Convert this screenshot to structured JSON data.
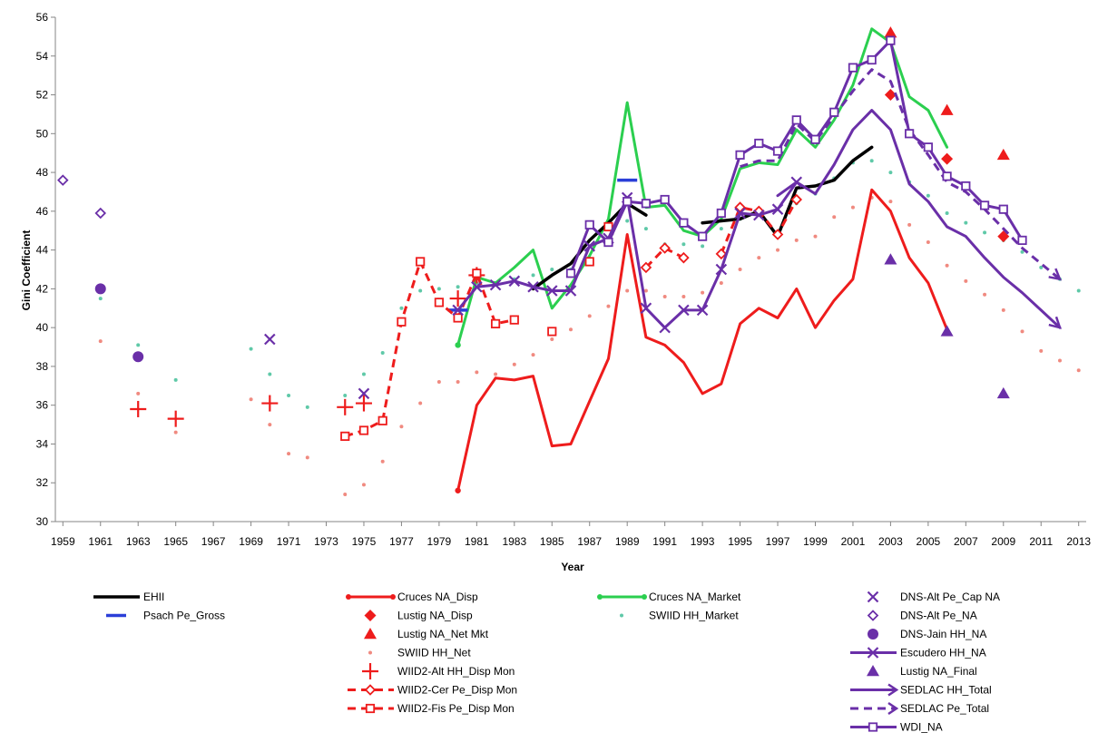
{
  "chart_data": {
    "type": "line",
    "title": "",
    "xlabel": "Year",
    "ylabel": "Gini Coefficient",
    "xlim": [
      1958.6,
      2013.4
    ],
    "ylim": [
      30,
      56
    ],
    "y_ticks": [
      30,
      32,
      34,
      36,
      38,
      40,
      42,
      44,
      46,
      48,
      50,
      52,
      54,
      56
    ],
    "x_ticks": [
      1959,
      1961,
      1963,
      1965,
      1967,
      1969,
      1971,
      1973,
      1975,
      1977,
      1979,
      1981,
      1983,
      1985,
      1987,
      1989,
      1991,
      1993,
      1995,
      1997,
      1999,
      2001,
      2003,
      2005,
      2007,
      2009,
      2011,
      2013
    ],
    "grid": false,
    "legend_position": "bottom",
    "series": [
      {
        "name": "EHII",
        "color": "#000000",
        "style": "line",
        "width": 3.5,
        "marker": "none",
        "x": [
          1984,
          1985,
          1986,
          1987,
          1988,
          1989,
          1990
        ],
        "y": [
          42.0,
          42.7,
          43.3,
          44.5,
          45.4,
          46.4,
          45.8
        ]
      },
      {
        "name": "",
        "color": "#000000",
        "style": "line",
        "width": 3.5,
        "marker": "none",
        "x": [
          1993,
          1994,
          1995,
          1996,
          1997,
          1998,
          1999,
          2000,
          2001,
          2002
        ],
        "y": [
          45.4,
          45.5,
          45.6,
          46.0,
          44.7,
          47.2,
          47.3,
          47.6,
          48.6,
          49.3
        ]
      },
      {
        "name": "Psach Pe_Gross",
        "color": "#2b3fd8",
        "style": "none",
        "marker": "dash",
        "x": [
          1980,
          1989
        ],
        "y": [
          40.9,
          47.6
        ]
      },
      {
        "name": "Cruces NA_Disp",
        "color": "#ee1c1c",
        "style": "line",
        "width": 3,
        "marker": "circle",
        "x": [
          1980,
          1981,
          1982,
          1983,
          1984,
          1985,
          1986,
          1987,
          1988,
          1989,
          1990,
          1991,
          1992,
          1993,
          1994,
          1995,
          1996,
          1997,
          1998,
          1999,
          2000,
          2001,
          2002,
          2003,
          2004,
          2005,
          2006
        ],
        "y": [
          31.6,
          36.0,
          37.4,
          37.3,
          37.5,
          33.9,
          34.0,
          36.2,
          38.4,
          44.8,
          39.5,
          39.1,
          38.2,
          36.6,
          37.1,
          40.2,
          41.0,
          40.5,
          42.0,
          40.0,
          41.4,
          42.5,
          47.1,
          46.0,
          43.6,
          42.3,
          39.9
        ]
      },
      {
        "name": "Lustig NA_Disp",
        "color": "#ee1c1c",
        "style": "none",
        "marker": "diamond",
        "x": [
          2003,
          2006,
          2009
        ],
        "y": [
          52.0,
          48.7,
          44.7
        ]
      },
      {
        "name": "Lustig NA_Net Mkt",
        "color": "#ee1c1c",
        "style": "none",
        "marker": "triangle",
        "x": [
          2003,
          2006,
          2009
        ],
        "y": [
          55.2,
          51.2,
          48.9
        ]
      },
      {
        "name": "SWIID HH_Net",
        "color": "#f08a80",
        "style": "none",
        "marker": "dot",
        "x": [
          1961,
          1963,
          1965,
          1969,
          1970,
          1971,
          1972,
          1974,
          1975,
          1976,
          1977,
          1978,
          1979,
          1980,
          1981,
          1982,
          1983,
          1984,
          1985,
          1986,
          1987,
          1988,
          1989,
          1990,
          1991,
          1992,
          1993,
          1994,
          1995,
          1996,
          1997,
          1998,
          1999,
          2000,
          2001,
          2002,
          2003,
          2004,
          2005,
          2006,
          2007,
          2008,
          2009,
          2010,
          2011,
          2012,
          2013
        ],
        "y": [
          39.3,
          36.6,
          34.6,
          36.3,
          35.0,
          33.5,
          33.3,
          31.4,
          31.9,
          33.1,
          34.9,
          36.1,
          37.2,
          37.2,
          37.7,
          37.6,
          38.1,
          38.6,
          39.4,
          39.9,
          40.6,
          41.1,
          41.9,
          41.9,
          41.6,
          41.6,
          41.8,
          42.3,
          43.0,
          43.6,
          44.0,
          44.5,
          44.7,
          45.7,
          46.2,
          46.7,
          46.5,
          45.3,
          44.4,
          43.2,
          42.4,
          41.7,
          40.9,
          39.8,
          38.8,
          38.3,
          37.8
        ]
      },
      {
        "name": "WIID2-Alt HH_Disp Mon",
        "color": "#ee1c1c",
        "style": "none",
        "marker": "plus",
        "x": [
          1963,
          1965,
          1970,
          1974,
          1975,
          1980,
          1981
        ],
        "y": [
          35.8,
          35.3,
          36.1,
          35.9,
          36.1,
          41.5,
          42.7
        ]
      },
      {
        "name": "WIID2-Cer Pe_Disp Mon",
        "color": "#ee1c1c",
        "style": "dashed",
        "width": 3,
        "marker": "diamond-open",
        "x": [
          1990,
          1991,
          1992
        ],
        "y": [
          43.1,
          44.1,
          43.6
        ]
      },
      {
        "name": "",
        "color": "#ee1c1c",
        "style": "dashed",
        "width": 3,
        "marker": "diamond-open",
        "x": [
          1994,
          1995,
          1996,
          1997,
          1998
        ],
        "y": [
          43.8,
          46.2,
          46.0,
          44.8,
          46.6
        ]
      },
      {
        "name": "WIID2-Fis Pe_Disp Mon",
        "color": "#ee1c1c",
        "style": "dashed",
        "width": 3,
        "marker": "square-open",
        "x": [
          1974,
          1975,
          1976,
          1977,
          1978,
          1979,
          1980,
          1981,
          1982,
          1983
        ],
        "y": [
          34.4,
          34.7,
          35.2,
          40.3,
          43.4,
          41.3,
          40.5,
          42.8,
          40.2,
          40.4
        ]
      },
      {
        "name": "",
        "color": "#ee1c1c",
        "style": "none",
        "marker": "square-open",
        "x": [
          1985,
          1987,
          1988
        ],
        "y": [
          39.8,
          43.4,
          45.2
        ]
      },
      {
        "name": "Cruces NA_Market",
        "color": "#2bcf4f",
        "style": "line",
        "width": 3,
        "marker": "circle",
        "x": [
          1980,
          1981,
          1982,
          1983,
          1984,
          1985,
          1986,
          1987,
          1988,
          1989,
          1990,
          1991,
          1992,
          1993,
          1994,
          1995,
          1996,
          1997,
          1998,
          1999,
          2000,
          2001,
          2002,
          2003,
          2004,
          2005,
          2006
        ],
        "y": [
          39.1,
          42.6,
          42.3,
          43.1,
          44.0,
          41.0,
          42.2,
          43.7,
          45.6,
          51.6,
          46.2,
          46.3,
          45.0,
          44.7,
          45.6,
          48.2,
          48.5,
          48.4,
          50.2,
          49.3,
          50.7,
          52.5,
          55.4,
          54.7,
          51.9,
          51.2,
          49.3
        ]
      },
      {
        "name": "SWIID HH_Market",
        "color": "#5fc9a8",
        "style": "none",
        "marker": "dot",
        "x": [
          1961,
          1963,
          1965,
          1969,
          1970,
          1971,
          1972,
          1974,
          1975,
          1976,
          1977,
          1978,
          1979,
          1980,
          1981,
          1982,
          1983,
          1984,
          1985,
          1986,
          1987,
          1988,
          1989,
          1990,
          1991,
          1992,
          1993,
          1994,
          1995,
          1996,
          1997,
          1998,
          1999,
          2000,
          2001,
          2002,
          2003,
          2004,
          2005,
          2006,
          2007,
          2008,
          2009,
          2010,
          2011,
          2012,
          2013
        ],
        "y": [
          41.5,
          39.1,
          37.3,
          38.9,
          37.6,
          36.5,
          35.9,
          36.5,
          37.6,
          38.7,
          41.0,
          41.9,
          42.0,
          42.1,
          42.3,
          42.3,
          42.5,
          42.7,
          43.0,
          43.0,
          43.4,
          44.4,
          45.5,
          45.1,
          44.3,
          44.3,
          44.2,
          45.1,
          45.6,
          46.0,
          46.1,
          46.4,
          46.9,
          47.7,
          48.5,
          48.6,
          48.0,
          47.5,
          46.8,
          45.9,
          45.4,
          44.9,
          44.5,
          43.9,
          43.1,
          42.5,
          41.9
        ]
      },
      {
        "name": "DNS-Alt Pe_Cap NA",
        "color": "#6a2fa8",
        "style": "none",
        "marker": "x",
        "x": [
          1970,
          1975
        ],
        "y": [
          39.4,
          36.6
        ]
      },
      {
        "name": "DNS-Alt Pe_NA",
        "color": "#6a2fa8",
        "style": "none",
        "marker": "diamond-open",
        "x": [
          1959,
          1961
        ],
        "y": [
          47.6,
          45.9
        ]
      },
      {
        "name": "DNS-Jain HH_NA",
        "color": "#6a2fa8",
        "style": "none",
        "marker": "circle-big",
        "x": [
          1961,
          1963
        ],
        "y": [
          42.0,
          38.5
        ]
      },
      {
        "name": "Escudero HH_NA",
        "color": "#6a2fa8",
        "style": "line",
        "width": 3,
        "marker": "x",
        "x": [
          1980,
          1981,
          1982,
          1983,
          1984,
          1985,
          1986,
          1987,
          1988,
          1989,
          1990,
          1991,
          1992,
          1993,
          1994,
          1995,
          1996,
          1997,
          1998
        ],
        "y": [
          40.9,
          42.1,
          42.2,
          42.4,
          42.1,
          41.9,
          41.9,
          44.2,
          44.6,
          46.7,
          41.0,
          40.0,
          40.9,
          40.9,
          43.0,
          45.9,
          45.8,
          46.1,
          47.5
        ]
      },
      {
        "name": "Lustig NA_Final",
        "color": "#6a2fa8",
        "style": "none",
        "marker": "triangle",
        "x": [
          2003,
          2006,
          2009
        ],
        "y": [
          43.5,
          39.8,
          36.6
        ]
      },
      {
        "name": "SEDLAC HH_Total",
        "color": "#6a2fa8",
        "style": "line",
        "width": 3,
        "marker": "arrow",
        "x": [
          1997,
          1998,
          1999,
          2000,
          2001,
          2002,
          2003,
          2004,
          2005,
          2006,
          2007,
          2008,
          2009,
          2010,
          2011,
          2012
        ],
        "y": [
          46.8,
          47.5,
          46.9,
          48.4,
          50.2,
          51.2,
          50.2,
          47.4,
          46.5,
          45.2,
          44.7,
          43.6,
          42.6,
          41.8,
          40.9,
          40.0
        ]
      },
      {
        "name": "SEDLAC Pe_Total",
        "color": "#6a2fa8",
        "style": "dashed",
        "width": 3,
        "marker": "arrow",
        "x": [
          1995,
          1996,
          1997,
          1998,
          1999,
          2000,
          2001,
          2002,
          2003,
          2004,
          2005,
          2006,
          2007,
          2008,
          2009,
          2010,
          2011,
          2012
        ],
        "y": [
          48.3,
          48.6,
          48.6,
          50.5,
          49.6,
          50.9,
          52.2,
          53.3,
          52.7,
          50.2,
          48.9,
          47.5,
          47.0,
          46.1,
          45.1,
          44.1,
          43.3,
          42.5
        ]
      },
      {
        "name": "WDI_NA",
        "color": "#6a2fa8",
        "style": "line",
        "width": 3,
        "marker": "square-open",
        "x": [
          1986,
          1987,
          1988,
          1989,
          1990,
          1991,
          1992,
          1993,
          1994,
          1995,
          1996,
          1997,
          1998,
          1999,
          2000,
          2001,
          2002,
          2003,
          2004,
          2005,
          2006,
          2007,
          2008,
          2009,
          2010
        ],
        "y": [
          42.8,
          45.3,
          44.4,
          46.5,
          46.4,
          46.6,
          45.4,
          44.7,
          45.9,
          48.9,
          49.5,
          49.1,
          50.7,
          49.7,
          51.1,
          53.4,
          53.8,
          54.8,
          50.0,
          49.3,
          47.8,
          47.3,
          46.3,
          46.1,
          44.5
        ]
      }
    ],
    "legend": [
      {
        "label": "EHII",
        "series": 0
      },
      {
        "label": "Psach Pe_Gross",
        "series": 2
      },
      {
        "label": "Cruces NA_Disp",
        "series": 3
      },
      {
        "label": "Lustig NA_Disp",
        "series": 4
      },
      {
        "label": "Lustig NA_Net Mkt",
        "series": 5
      },
      {
        "label": "SWIID HH_Net",
        "series": 6
      },
      {
        "label": "WIID2-Alt HH_Disp Mon",
        "series": 7
      },
      {
        "label": "WIID2-Cer Pe_Disp Mon",
        "series": 8
      },
      {
        "label": "WIID2-Fis Pe_Disp Mon",
        "series": 10
      },
      {
        "label": "Cruces NA_Market",
        "series": 12
      },
      {
        "label": "SWIID HH_Market",
        "series": 13
      },
      {
        "label": "DNS-Alt Pe_Cap NA",
        "series": 14
      },
      {
        "label": "DNS-Alt Pe_NA",
        "series": 15
      },
      {
        "label": "DNS-Jain HH_NA",
        "series": 16
      },
      {
        "label": "Escudero HH_NA",
        "series": 17
      },
      {
        "label": "Lustig NA_Final",
        "series": 18
      },
      {
        "label": "SEDLAC HH_Total",
        "series": 19
      },
      {
        "label": "SEDLAC Pe_Total",
        "series": 20
      },
      {
        "label": "WDI_NA",
        "series": 21
      }
    ]
  }
}
